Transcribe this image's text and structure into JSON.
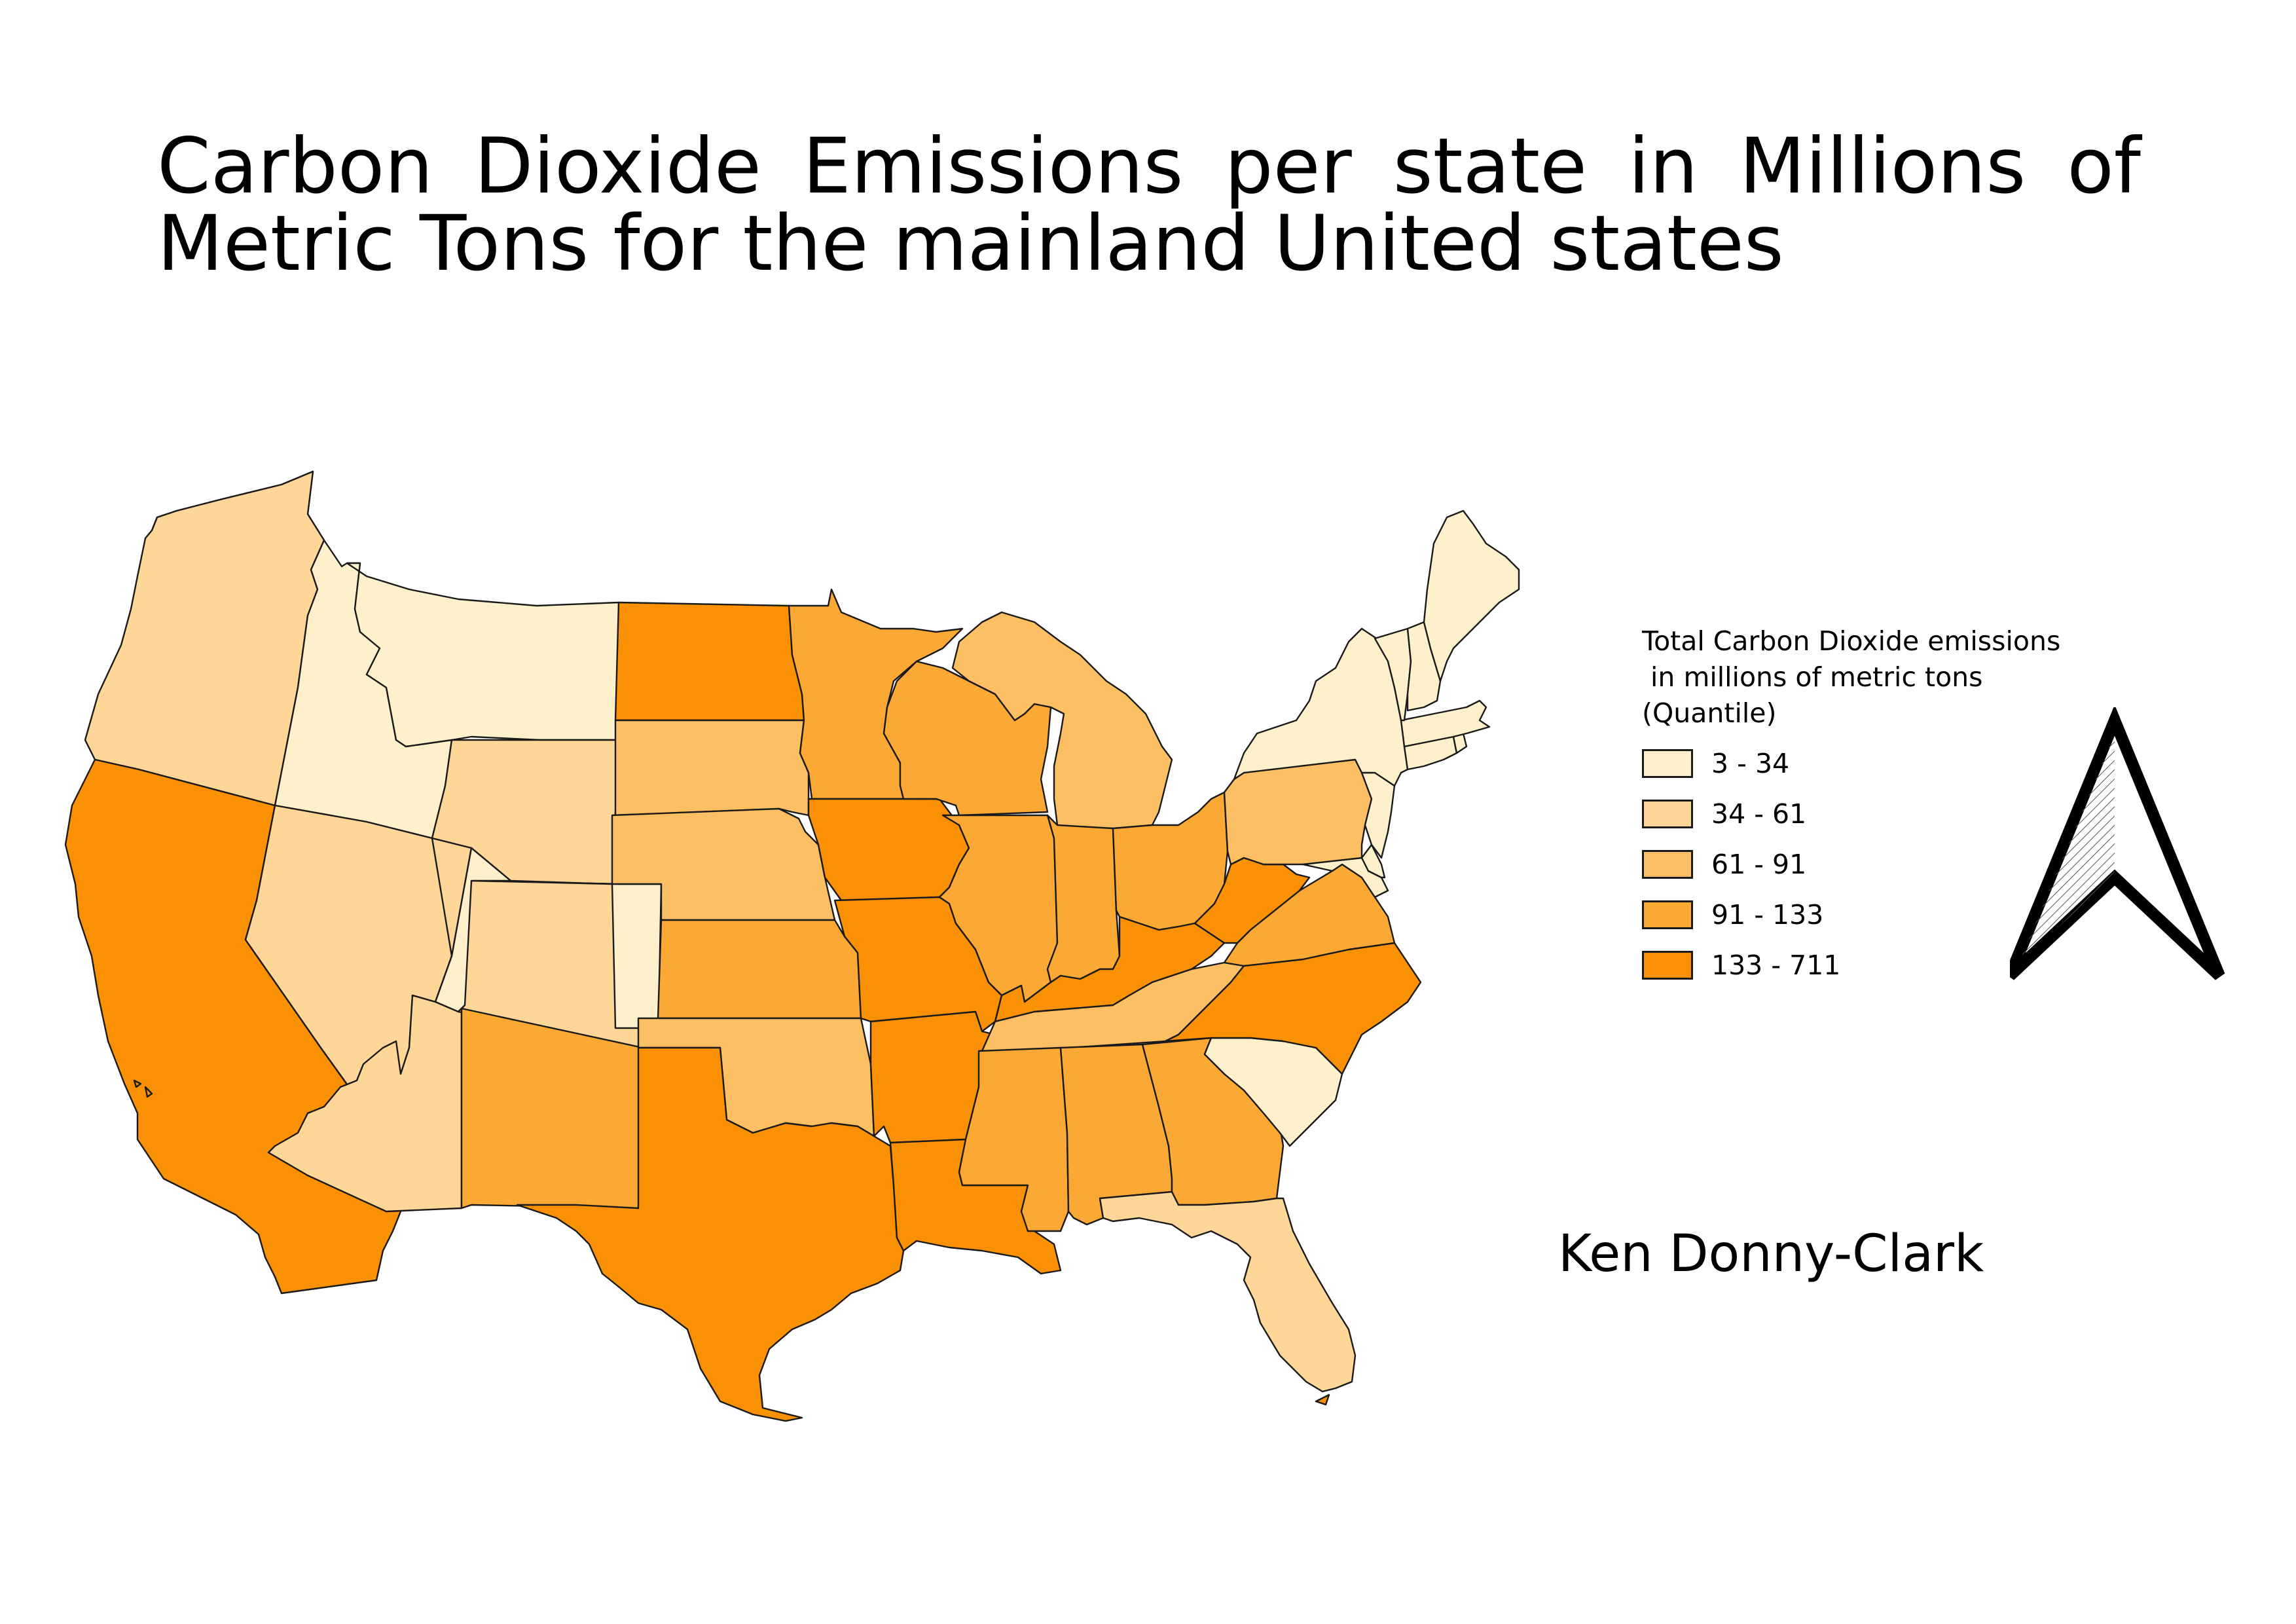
{
  "title": "Carbon Dioxide Emissions per state in Millions of Metric Tons for the mainland United states",
  "author": "Ken Donny-Clark",
  "legend": {
    "title": "Total Carbon Dioxide emissions\n in millions of metric tons\n(Quantile)",
    "classes": [
      {
        "label": "3 - 34",
        "color": "#fff0cc"
      },
      {
        "label": "34 - 61",
        "color": "#fed698"
      },
      {
        "label": "61 - 91",
        "color": "#fdbf63"
      },
      {
        "label": "91 - 133",
        "color": "#fba934"
      },
      {
        "label": "133 - 711",
        "color": "#fa9003"
      }
    ]
  },
  "north_arrow": {
    "icon": "north-arrow-icon"
  },
  "states": [
    {
      "name": "Washington",
      "class": 2
    },
    {
      "name": "Oregon",
      "class": 1
    },
    {
      "name": "California",
      "class": 4
    },
    {
      "name": "Idaho",
      "class": 0
    },
    {
      "name": "Nevada",
      "class": 1
    },
    {
      "name": "Montana",
      "class": 0
    },
    {
      "name": "Wyoming",
      "class": 1
    },
    {
      "name": "Utah",
      "class": 1
    },
    {
      "name": "Arizona",
      "class": 2
    },
    {
      "name": "Colorado",
      "class": 2
    },
    {
      "name": "New Mexico",
      "class": 1
    },
    {
      "name": "North Dakota",
      "class": 1
    },
    {
      "name": "South Dakota",
      "class": 0
    },
    {
      "name": "Nebraska",
      "class": 1
    },
    {
      "name": "Kansas",
      "class": 1
    },
    {
      "name": "Oklahoma",
      "class": 3
    },
    {
      "name": "Texas",
      "class": 4
    },
    {
      "name": "Minnesota",
      "class": 2
    },
    {
      "name": "Iowa",
      "class": 2
    },
    {
      "name": "Missouri",
      "class": 3
    },
    {
      "name": "Arkansas",
      "class": 2
    },
    {
      "name": "Louisiana",
      "class": 4
    },
    {
      "name": "Wisconsin",
      "class": 3
    },
    {
      "name": "Illinois",
      "class": 4
    },
    {
      "name": "Michigan",
      "class": 4
    },
    {
      "name": "Indiana",
      "class": 4
    },
    {
      "name": "Ohio",
      "class": 4
    },
    {
      "name": "Kentucky",
      "class": 3
    },
    {
      "name": "Tennessee",
      "class": 3
    },
    {
      "name": "Mississippi",
      "class": 2
    },
    {
      "name": "Alabama",
      "class": 3
    },
    {
      "name": "Georgia",
      "class": 3
    },
    {
      "name": "Florida",
      "class": 4
    },
    {
      "name": "South Carolina",
      "class": 2
    },
    {
      "name": "North Carolina",
      "class": 3
    },
    {
      "name": "Virginia",
      "class": 3
    },
    {
      "name": "West Virginia",
      "class": 3
    },
    {
      "name": "Maryland",
      "class": 1
    },
    {
      "name": "Delaware",
      "class": 0
    },
    {
      "name": "Pennsylvania",
      "class": 4
    },
    {
      "name": "New Jersey",
      "class": 3
    },
    {
      "name": "New York",
      "class": 4
    },
    {
      "name": "Connecticut",
      "class": 0
    },
    {
      "name": "Rhode Island",
      "class": 0
    },
    {
      "name": "Massachusetts",
      "class": 2
    },
    {
      "name": "Vermont",
      "class": 0
    },
    {
      "name": "New Hampshire",
      "class": 0
    },
    {
      "name": "Maine",
      "class": 0
    }
  ]
}
